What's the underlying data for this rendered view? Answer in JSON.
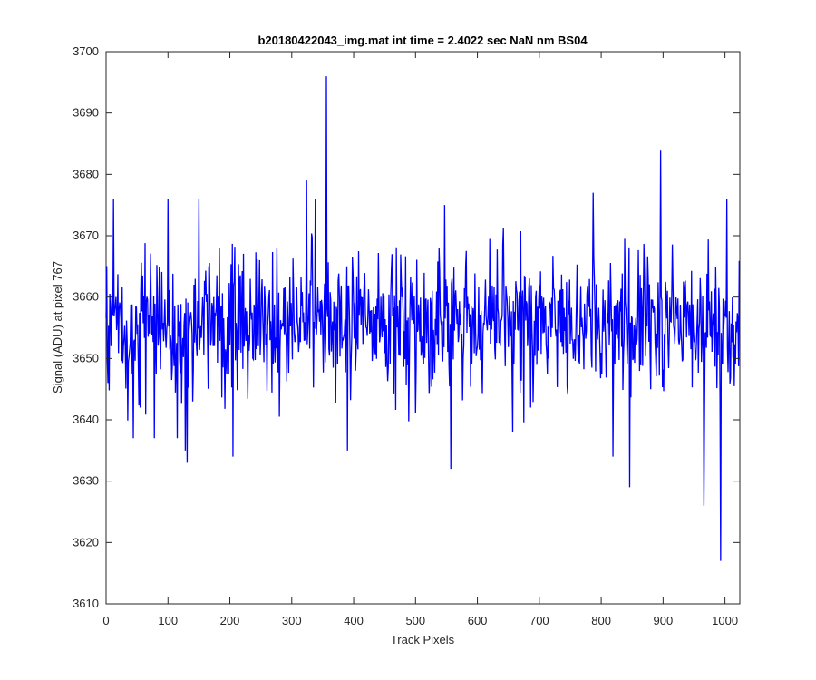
{
  "chart_data": {
    "type": "line",
    "title": "b20180422043_img.mat int time = 2.4022 sec  NaN nm BS04",
    "xlabel": "Track Pixels",
    "ylabel": "Signal (ADU) at pixel 767",
    "xlim": [
      0,
      1024
    ],
    "ylim": [
      3610,
      3700
    ],
    "xticks": [
      0,
      100,
      200,
      300,
      400,
      500,
      600,
      700,
      800,
      900,
      1000
    ],
    "yticks": [
      3610,
      3620,
      3630,
      3640,
      3650,
      3660,
      3670,
      3680,
      3690,
      3700
    ],
    "grid": false,
    "legend": "none",
    "series": [
      {
        "color": "#0000ff",
        "noise": {
          "n": 1024,
          "mean": 3656,
          "spread": 6.5,
          "seed": 767
        },
        "spikes": [
          {
            "x": 3,
            "y": 3646
          },
          {
            "x": 12,
            "y": 3676
          },
          {
            "x": 44,
            "y": 3637
          },
          {
            "x": 55,
            "y": 3642
          },
          {
            "x": 78,
            "y": 3637
          },
          {
            "x": 100,
            "y": 3676
          },
          {
            "x": 115,
            "y": 3637
          },
          {
            "x": 128,
            "y": 3635
          },
          {
            "x": 131,
            "y": 3633
          },
          {
            "x": 140,
            "y": 3643
          },
          {
            "x": 150,
            "y": 3676
          },
          {
            "x": 205,
            "y": 3634
          },
          {
            "x": 324,
            "y": 3679
          },
          {
            "x": 338,
            "y": 3676
          },
          {
            "x": 356,
            "y": 3696
          },
          {
            "x": 390,
            "y": 3635
          },
          {
            "x": 547,
            "y": 3675
          },
          {
            "x": 557,
            "y": 3632
          },
          {
            "x": 657,
            "y": 3638
          },
          {
            "x": 787,
            "y": 3677
          },
          {
            "x": 819,
            "y": 3634
          },
          {
            "x": 846,
            "y": 3629
          },
          {
            "x": 896,
            "y": 3684
          },
          {
            "x": 966,
            "y": 3626
          },
          {
            "x": 993,
            "y": 3617
          },
          {
            "x": 1003,
            "y": 3676
          }
        ]
      }
    ]
  }
}
